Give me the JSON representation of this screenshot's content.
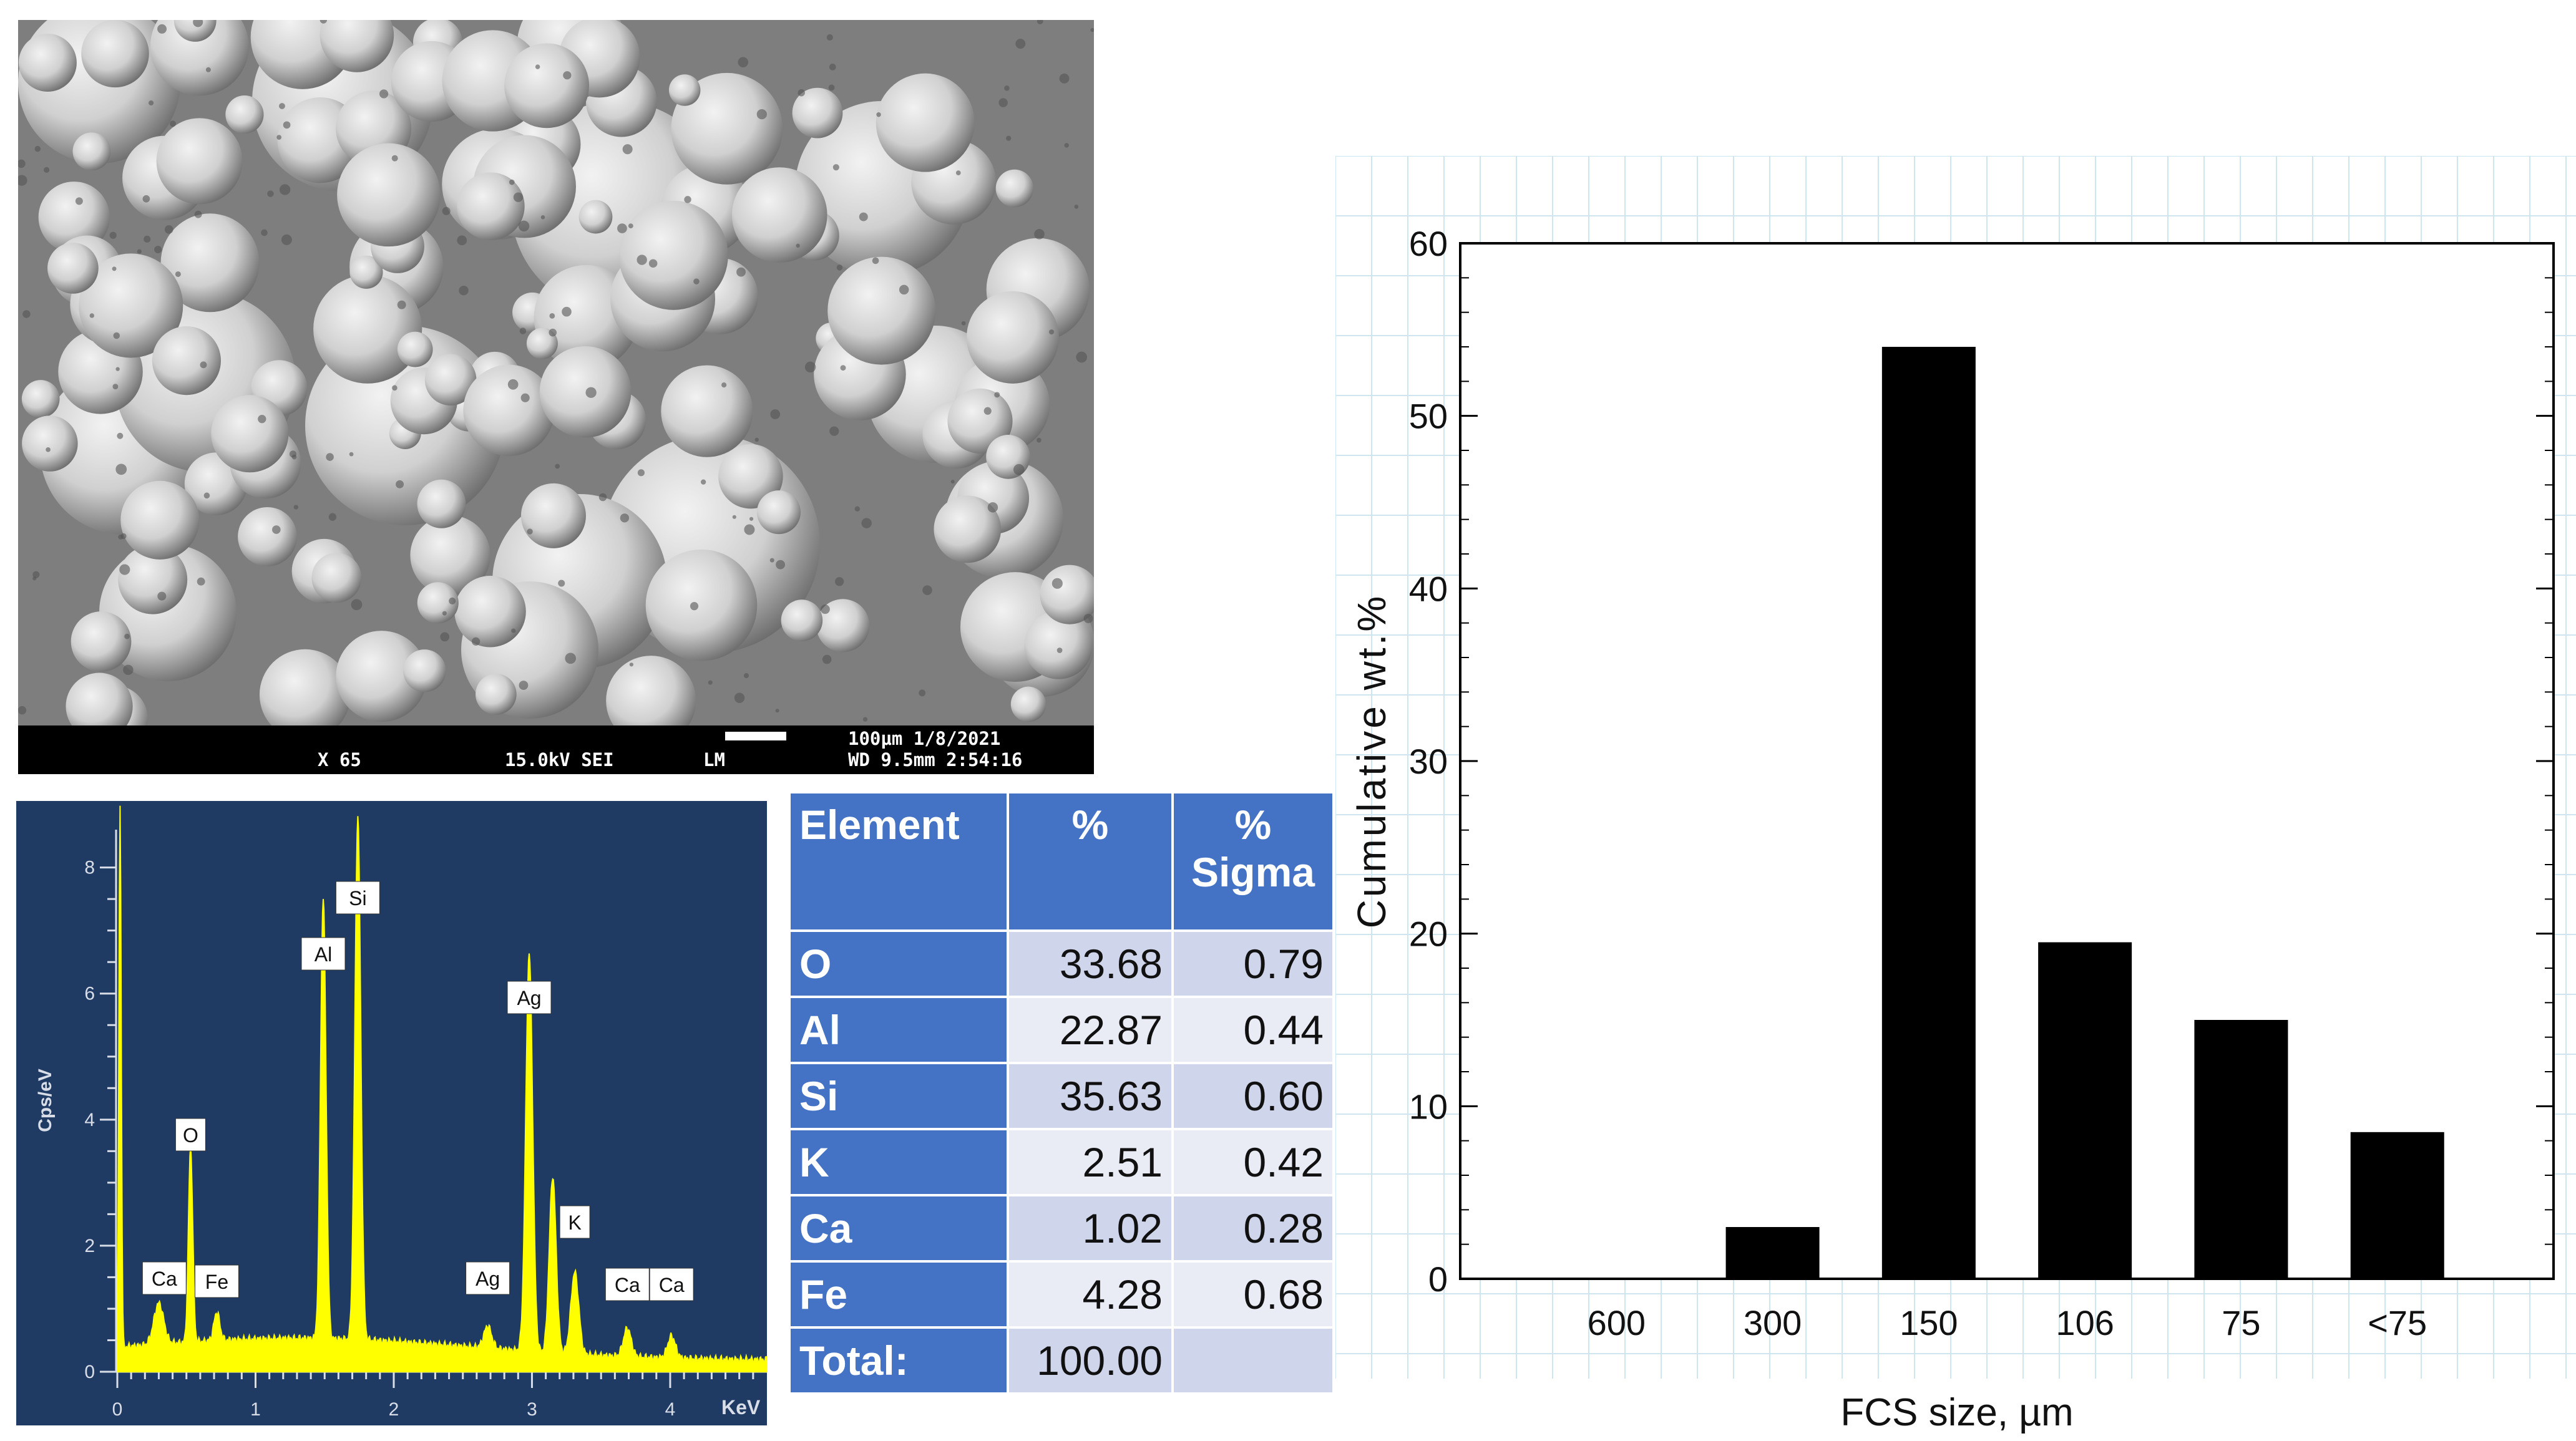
{
  "sem_image": {
    "magnification": "X 65",
    "voltage_mode": "15.0kV SEI",
    "detector": "LM",
    "scale_label": "100µm 1/8/2021",
    "wd_time": "WD 9.5mm   2:54:16"
  },
  "eds_spectrum": {
    "y_axis_label": "Cps/eV",
    "x_axis_label": "KeV",
    "y_ticks": [
      "0",
      "2",
      "4",
      "6",
      "8"
    ],
    "x_ticks": [
      "0",
      "1",
      "2",
      "3",
      "4"
    ],
    "ylim": [
      0,
      8.6
    ],
    "xlim": [
      0,
      4.7
    ],
    "peak_labels": [
      {
        "label": "Ca",
        "energy": 0.34
      },
      {
        "label": "O",
        "energy": 0.53
      },
      {
        "label": "Fe",
        "energy": 0.72
      },
      {
        "label": "Al",
        "energy": 1.49
      },
      {
        "label": "Si",
        "energy": 1.74
      },
      {
        "label": "Ag",
        "energy": 2.68
      },
      {
        "label": "Ag",
        "energy": 2.98
      },
      {
        "label": "K",
        "energy": 3.31
      },
      {
        "label": "Ca",
        "energy": 3.69
      },
      {
        "label": "Ca",
        "energy": 4.01
      }
    ],
    "colors": {
      "background": "#1f3b63",
      "spectrum": "#ffff00"
    }
  },
  "composition_table": {
    "headers": [
      "Element",
      "%",
      "% Sigma"
    ],
    "rows": [
      {
        "element": "O",
        "percent": "33.68",
        "sigma": "0.79"
      },
      {
        "element": "Al",
        "percent": "22.87",
        "sigma": "0.44"
      },
      {
        "element": "Si",
        "percent": "35.63",
        "sigma": "0.60"
      },
      {
        "element": "K",
        "percent": "2.51",
        "sigma": "0.42"
      },
      {
        "element": "Ca",
        "percent": "1.02",
        "sigma": "0.28"
      },
      {
        "element": "Fe",
        "percent": "4.28",
        "sigma": "0.68"
      }
    ],
    "total_label": "Total:",
    "total_percent": "100.00",
    "total_sigma": "",
    "colors": {
      "header": "#4472c4",
      "row_light": "#e9ebf5",
      "row_dark": "#cfd5ea"
    }
  },
  "chart_data": {
    "type": "bar",
    "title": "",
    "xlabel": "FCS size, µm",
    "ylabel": "Cumulative wt.%",
    "categories": [
      "600",
      "300",
      "150",
      "106",
      "75",
      "<75"
    ],
    "values": [
      0,
      3,
      54,
      19.5,
      15,
      8.5
    ],
    "ylim": [
      0,
      60
    ],
    "yticks": [
      "0",
      "10",
      "20",
      "30",
      "40",
      "50",
      "60"
    ],
    "grid": true,
    "bar_color": "#000000"
  }
}
